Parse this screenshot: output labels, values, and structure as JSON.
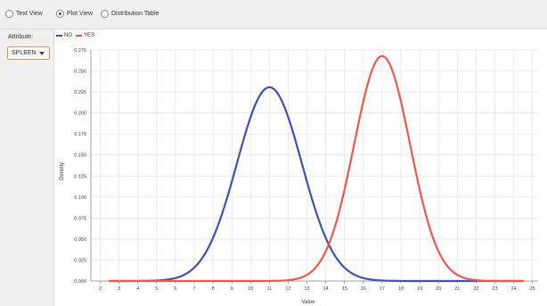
{
  "view_options": [
    {
      "label": "Text View",
      "checked": false
    },
    {
      "label": "Plot View",
      "checked": true
    },
    {
      "label": "Distribution Table",
      "checked": false
    }
  ],
  "attribute_panel": {
    "label": "Attribute:",
    "selected": "SPLEEN"
  },
  "chart_data": {
    "type": "line",
    "xlabel": "Value",
    "ylabel": "Density",
    "xlim": [
      1.5,
      25.3
    ],
    "ylim": [
      0,
      0.275
    ],
    "x_ticks": [
      2,
      3,
      4,
      5,
      6,
      7,
      8,
      9,
      10,
      11,
      12,
      13,
      14,
      15,
      16,
      17,
      18,
      19,
      20,
      21,
      22,
      23,
      24,
      25
    ],
    "y_ticks": [
      "0.000",
      "0.025",
      "0.050",
      "0.075",
      "0.100",
      "0.125",
      "0.150",
      "0.175",
      "0.200",
      "0.225",
      "0.250",
      "0.275"
    ],
    "grid": true,
    "legend_position": "top-left",
    "series": [
      {
        "name": "NO",
        "color": "#3f51b5",
        "mean": 11.0,
        "sd": 1.73,
        "x_range": [
          2.5,
          24.5
        ]
      },
      {
        "name": "YES",
        "color": "#f0574e",
        "mean": 17.0,
        "sd": 1.49,
        "x_range": [
          2.5,
          24.5
        ]
      }
    ]
  }
}
